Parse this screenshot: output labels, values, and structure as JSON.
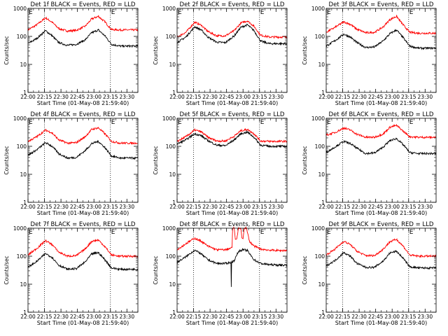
{
  "colors": {
    "events": "#000000",
    "lld": "#ff0000",
    "axes": "#000000",
    "background": "#ffffff"
  },
  "chart_data": [
    {
      "type": "line",
      "title": "Det 1f BLACK = Events, RED = LLD",
      "xlabel": "Start Time (01-May-08 21:59:40)",
      "ylabel": "Counts/sec",
      "x_ticks": [
        "22:00",
        "22:15",
        "22:30",
        "22:45",
        "23:00",
        "23:15",
        "23:30"
      ],
      "y_ticks": [
        "1",
        "10",
        "100",
        "1000"
      ],
      "ylim": [
        1,
        1000
      ],
      "y_scale": "log",
      "x_range_minutes": [
        0,
        100
      ],
      "corner_label": "E",
      "vlines_minutes": [
        15,
        75
      ],
      "series": [
        {
          "color": "#ff0000",
          "x": [
            0,
            8,
            16,
            22,
            28,
            36,
            44,
            52,
            58,
            64,
            70,
            76,
            84,
            92,
            100
          ],
          "values": [
            170,
            260,
            460,
            320,
            190,
            155,
            165,
            230,
            420,
            520,
            330,
            175,
            170,
            170,
            170
          ]
        },
        {
          "color": "#000000",
          "x": [
            0,
            8,
            16,
            22,
            28,
            36,
            44,
            52,
            58,
            64,
            70,
            76,
            84,
            92,
            100
          ],
          "values": [
            55,
            85,
            160,
            105,
            60,
            48,
            52,
            75,
            135,
            170,
            105,
            52,
            45,
            45,
            45
          ]
        }
      ]
    },
    {
      "type": "line",
      "title": "Det 2f BLACK = Events, RED = LLD",
      "xlabel": "Start Time (01-May-08 21:59:40)",
      "ylabel": "Counts/sec",
      "x_ticks": [
        "22:00",
        "22:15",
        "22:30",
        "22:45",
        "23:00",
        "23:15",
        "23:30"
      ],
      "y_ticks": [
        "1",
        "10",
        "100",
        "1000"
      ],
      "ylim": [
        1,
        1000
      ],
      "y_scale": "log",
      "x_range_minutes": [
        0,
        100
      ],
      "corner_label": "E",
      "vlines_minutes": [
        15,
        75
      ],
      "series": [
        {
          "color": "#ff0000",
          "x": [
            0,
            8,
            16,
            22,
            28,
            36,
            44,
            52,
            58,
            64,
            70,
            76,
            84,
            92,
            100
          ],
          "values": [
            95,
            140,
            320,
            250,
            150,
            105,
            105,
            160,
            300,
            360,
            230,
            110,
            95,
            95,
            95
          ]
        },
        {
          "color": "#000000",
          "x": [
            0,
            8,
            16,
            22,
            28,
            36,
            44,
            52,
            58,
            64,
            70,
            76,
            84,
            92,
            100
          ],
          "values": [
            60,
            95,
            220,
            170,
            95,
            62,
            60,
            105,
            210,
            260,
            160,
            68,
            55,
            55,
            55
          ]
        }
      ]
    },
    {
      "type": "line",
      "title": "Det 3f BLACK = Events, RED = LLD",
      "xlabel": "Start Time (01-May-08 21:59:40)",
      "ylabel": "Counts/sec",
      "x_ticks": [
        "22:00",
        "22:15",
        "22:30",
        "22:45",
        "23:00",
        "23:15",
        "23:30"
      ],
      "y_ticks": [
        "1",
        "10",
        "100",
        "1000"
      ],
      "ylim": [
        1,
        1000
      ],
      "y_scale": "log",
      "x_range_minutes": [
        0,
        100
      ],
      "corner_label": "E",
      "vlines_minutes": [
        15,
        75
      ],
      "series": [
        {
          "color": "#ff0000",
          "x": [
            0,
            8,
            16,
            22,
            28,
            36,
            44,
            52,
            58,
            64,
            70,
            76,
            84,
            92,
            100
          ],
          "values": [
            140,
            210,
            330,
            270,
            180,
            135,
            140,
            220,
            400,
            520,
            260,
            140,
            130,
            130,
            130
          ]
        },
        {
          "color": "#000000",
          "x": [
            0,
            8,
            16,
            22,
            28,
            36,
            44,
            52,
            58,
            64,
            70,
            76,
            84,
            92,
            100
          ],
          "values": [
            45,
            70,
            120,
            95,
            60,
            40,
            42,
            70,
            125,
            170,
            90,
            45,
            38,
            38,
            38
          ]
        }
      ]
    },
    {
      "type": "line",
      "title": "Det 4f BLACK = Events, RED = LLD",
      "xlabel": "Start Time (01-May-08 21:59:40)",
      "ylabel": "Counts/sec",
      "x_ticks": [
        "22:00",
        "22:15",
        "22:30",
        "22:45",
        "23:00",
        "23:15",
        "23:30"
      ],
      "y_ticks": [
        "1",
        "10",
        "100",
        "1000"
      ],
      "ylim": [
        1,
        1000
      ],
      "y_scale": "log",
      "x_range_minutes": [
        0,
        100
      ],
      "corner_label": "E",
      "vlines_minutes": [
        15,
        75
      ],
      "series": [
        {
          "color": "#ff0000",
          "x": [
            0,
            8,
            16,
            22,
            28,
            36,
            44,
            52,
            58,
            64,
            70,
            76,
            84,
            92,
            100
          ],
          "values": [
            150,
            220,
            380,
            300,
            170,
            130,
            135,
            220,
            400,
            460,
            280,
            150,
            130,
            130,
            130
          ]
        },
        {
          "color": "#000000",
          "x": [
            0,
            8,
            16,
            22,
            28,
            36,
            44,
            52,
            58,
            64,
            70,
            76,
            84,
            92,
            100
          ],
          "values": [
            48,
            75,
            135,
            100,
            55,
            38,
            40,
            70,
            125,
            150,
            90,
            45,
            38,
            38,
            38
          ]
        }
      ]
    },
    {
      "type": "line",
      "title": "Det 5f BLACK = Events, RED = LLD",
      "xlabel": "Start Time (01-May-08 21:59:40)",
      "ylabel": "Counts/sec",
      "x_ticks": [
        "22:00",
        "22:15",
        "22:30",
        "22:45",
        "23:00",
        "23:15",
        "23:30"
      ],
      "y_ticks": [
        "1",
        "10",
        "100",
        "1000"
      ],
      "ylim": [
        1,
        1000
      ],
      "y_scale": "log",
      "x_range_minutes": [
        0,
        100
      ],
      "corner_label": "E",
      "vlines_minutes": [
        15,
        75
      ],
      "series": [
        {
          "color": "#ff0000",
          "x": [
            0,
            8,
            16,
            22,
            28,
            36,
            44,
            52,
            58,
            64,
            70,
            76,
            84,
            92,
            100
          ],
          "values": [
            150,
            220,
            380,
            330,
            210,
            155,
            155,
            230,
            360,
            400,
            280,
            155,
            150,
            150,
            150
          ]
        },
        {
          "color": "#000000",
          "x": [
            0,
            8,
            16,
            22,
            28,
            36,
            44,
            52,
            58,
            64,
            70,
            76,
            84,
            92,
            100
          ],
          "values": [
            120,
            170,
            280,
            240,
            160,
            110,
            105,
            170,
            280,
            320,
            210,
            110,
            100,
            100,
            100
          ]
        }
      ]
    },
    {
      "type": "line",
      "title": "Det 6f BLACK = Events, RED = LLD",
      "xlabel": "Start Time (01-May-08 21:59:40)",
      "ylabel": "Counts/sec",
      "x_ticks": [
        "22:00",
        "22:15",
        "22:30",
        "22:45",
        "23:00",
        "23:15",
        "23:30"
      ],
      "y_ticks": [
        "1",
        "10",
        "100",
        "1000"
      ],
      "ylim": [
        1,
        1000
      ],
      "y_scale": "log",
      "x_range_minutes": [
        0,
        100
      ],
      "corner_label": "E",
      "vlines_minutes": [
        15,
        75
      ],
      "series": [
        {
          "color": "#ff0000",
          "x": [
            0,
            8,
            16,
            22,
            28,
            36,
            44,
            52,
            58,
            64,
            70,
            76,
            84,
            92,
            100
          ],
          "values": [
            250,
            310,
            450,
            380,
            270,
            210,
            210,
            280,
            480,
            560,
            350,
            220,
            210,
            210,
            210
          ]
        },
        {
          "color": "#000000",
          "x": [
            0,
            8,
            16,
            22,
            28,
            36,
            44,
            52,
            58,
            64,
            70,
            76,
            84,
            92,
            100
          ],
          "values": [
            60,
            95,
            150,
            125,
            85,
            55,
            58,
            95,
            160,
            190,
            115,
            60,
            55,
            55,
            55
          ]
        }
      ]
    },
    {
      "type": "line",
      "title": "Det 7f BLACK = Events, RED = LLD",
      "xlabel": "Start Time (01-May-08 21:59:40)",
      "ylabel": "Counts/sec",
      "x_ticks": [
        "22:00",
        "22:15",
        "22:30",
        "22:45",
        "23:00",
        "23:15",
        "23:30"
      ],
      "y_ticks": [
        "1",
        "10",
        "100",
        "1000"
      ],
      "ylim": [
        1,
        1000
      ],
      "y_scale": "log",
      "x_range_minutes": [
        0,
        100
      ],
      "corner_label": "E",
      "vlines_minutes": [
        15,
        75
      ],
      "series": [
        {
          "color": "#ff0000",
          "x": [
            0,
            8,
            16,
            22,
            28,
            36,
            44,
            52,
            58,
            64,
            70,
            76,
            84,
            92,
            100
          ],
          "values": [
            110,
            190,
            360,
            260,
            140,
            100,
            105,
            180,
            340,
            380,
            220,
            110,
            100,
            100,
            100
          ]
        },
        {
          "color": "#000000",
          "x": [
            0,
            8,
            16,
            22,
            28,
            36,
            44,
            52,
            58,
            64,
            70,
            76,
            84,
            92,
            100
          ],
          "values": [
            40,
            65,
            125,
            90,
            48,
            34,
            36,
            62,
            120,
            135,
            75,
            38,
            34,
            34,
            34
          ]
        }
      ]
    },
    {
      "type": "line",
      "title": "Det 8f BLACK = Events, RED = LLD",
      "xlabel": "Start Time (01-May-08 21:59:40)",
      "ylabel": "Counts/sec",
      "x_ticks": [
        "22:00",
        "22:15",
        "22:30",
        "22:45",
        "23:00",
        "23:15",
        "23:30"
      ],
      "y_ticks": [
        "1",
        "10",
        "100",
        "1000"
      ],
      "ylim": [
        1,
        1000
      ],
      "y_scale": "log",
      "x_range_minutes": [
        0,
        100
      ],
      "corner_label": "E",
      "vlines_minutes": [
        15,
        75
      ],
      "series": [
        {
          "color": "#ff0000",
          "x": [
            0,
            8,
            16,
            22,
            28,
            36,
            44,
            50,
            50.5,
            52,
            53,
            54,
            56,
            58,
            59,
            60,
            61,
            63,
            66,
            70,
            76,
            84,
            92,
            100
          ],
          "values": [
            170,
            280,
            440,
            340,
            230,
            170,
            170,
            200,
            1000,
            1000,
            400,
            380,
            1000,
            1000,
            450,
            420,
            1000,
            1000,
            330,
            230,
            180,
            165,
            160,
            160
          ]
        },
        {
          "color": "#000000",
          "x": [
            0,
            8,
            16,
            22,
            28,
            36,
            44,
            49,
            49.3,
            49.6,
            50,
            52,
            56,
            60,
            64,
            66,
            70,
            76,
            84,
            92,
            100
          ],
          "values": [
            60,
            95,
            165,
            120,
            75,
            55,
            55,
            60,
            8,
            60,
            62,
            70,
            150,
            170,
            160,
            120,
            75,
            55,
            50,
            48,
            48
          ]
        }
      ]
    },
    {
      "type": "line",
      "title": "Det 9f BLACK = Events, RED = LLD",
      "xlabel": "Start Time (01-May-08 21:59:40)",
      "ylabel": "Counts/sec",
      "x_ticks": [
        "22:00",
        "22:15",
        "22:30",
        "22:45",
        "23:00",
        "23:15",
        "23:30"
      ],
      "y_ticks": [
        "1",
        "10",
        "100",
        "1000"
      ],
      "ylim": [
        1,
        1000
      ],
      "y_scale": "log",
      "x_range_minutes": [
        0,
        100
      ],
      "corner_label": "E",
      "vlines_minutes": [
        15,
        75
      ],
      "series": [
        {
          "color": "#ff0000",
          "x": [
            0,
            8,
            16,
            22,
            28,
            36,
            44,
            52,
            58,
            64,
            70,
            76,
            84,
            92,
            100
          ],
          "values": [
            110,
            180,
            340,
            260,
            150,
            105,
            105,
            180,
            330,
            400,
            230,
            110,
            100,
            100,
            100
          ]
        },
        {
          "color": "#000000",
          "x": [
            0,
            8,
            16,
            22,
            28,
            36,
            44,
            52,
            58,
            64,
            70,
            76,
            84,
            92,
            100
          ],
          "values": [
            45,
            70,
            135,
            100,
            55,
            40,
            40,
            68,
            130,
            150,
            85,
            42,
            38,
            38,
            38
          ]
        }
      ]
    }
  ]
}
